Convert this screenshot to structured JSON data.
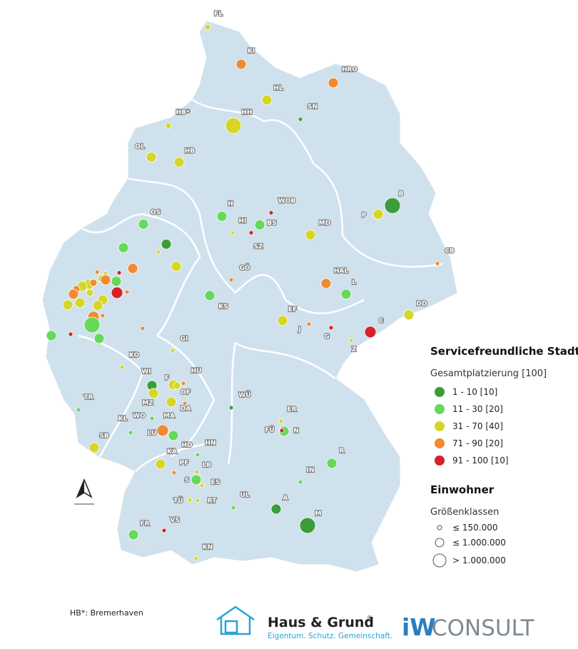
{
  "map": {
    "cities": [
      "FL",
      "KI",
      "HRO",
      "HL",
      "SN",
      "HB*",
      "HH",
      "OL",
      "HB",
      "OS",
      "H",
      "WOB",
      "B",
      "P",
      "HI",
      "BS",
      "MD",
      "SZ",
      "CB",
      "GÖ",
      "HAL",
      "L",
      "KS",
      "EF",
      "DD",
      "J",
      "G",
      "C",
      "Z",
      "GI",
      "KO",
      "HU",
      "WI",
      "F",
      "TR",
      "MZ",
      "OF",
      "WO",
      "DA",
      "KL",
      "MA",
      "WÜ",
      "ER",
      "FÜ",
      "N",
      "SB",
      "LU",
      "HD",
      "HN",
      "KA",
      "R",
      "PF",
      "LB",
      "S",
      "ES",
      "IN",
      "TÜ",
      "RT",
      "UL",
      "A",
      "FR",
      "VS",
      "M",
      "KN"
    ],
    "legend": {
      "title": "Servicefreundliche Stadt",
      "rank_title": "Gesamtplatzierung [100]",
      "rank_classes": [
        {
          "label": "1 - 10 [10]",
          "color": "#3c9c3c"
        },
        {
          "label": "11 - 30 [20]",
          "color": "#66d85a"
        },
        {
          "label": "31 - 70 [40]",
          "color": "#d6d62a"
        },
        {
          "label": "71 - 90 [20]",
          "color": "#f28a32"
        },
        {
          "label": "91 - 100 [10]",
          "color": "#d8202a"
        }
      ],
      "population_title": "Einwohner",
      "population_subtitle": "Größenklassen",
      "population_classes": [
        "≤ 150.000",
        "≤ 1.000.000",
        "> 1.000.000"
      ]
    }
  },
  "footnote": "HB*: Bremerhaven",
  "logos": {
    "haus_grund": "Haus & Grund",
    "registered": "®",
    "slogan": "Eigentum. Schutz. Gemeinschaft.",
    "iw": "iW",
    "consult": "CONSULT"
  }
}
